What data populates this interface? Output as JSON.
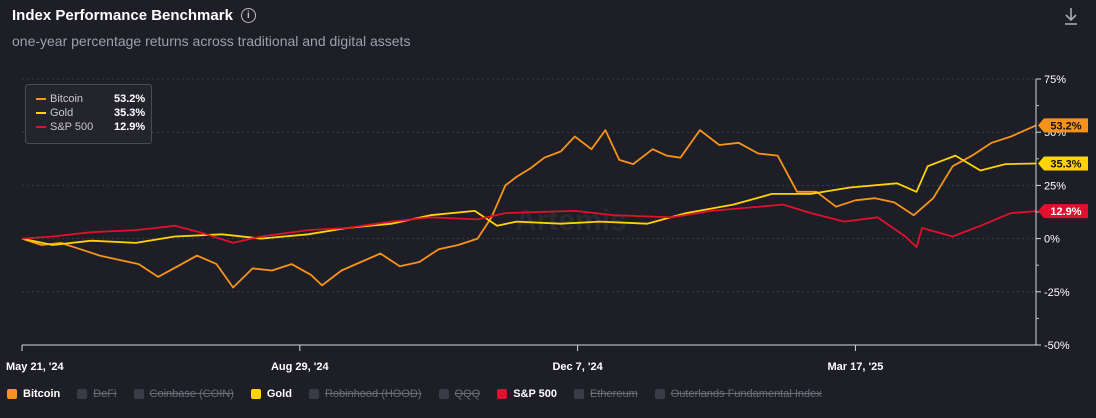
{
  "header": {
    "title": "Index Performance Benchmark",
    "info_glyph": "i",
    "subtitle": "one-year percentage returns across traditional and digital assets"
  },
  "watermark": "Artemis",
  "tooltip": [
    {
      "name": "Bitcoin",
      "value": "53.2%",
      "color": "#f7931a"
    },
    {
      "name": "Gold",
      "value": "35.3%",
      "color": "#ffd400"
    },
    {
      "name": "S&P 500",
      "value": "12.9%",
      "color": "#e0102f"
    }
  ],
  "legend": [
    {
      "label": "Bitcoin",
      "color": "#f7931a",
      "active": true
    },
    {
      "label": "DeFi",
      "color": "#3a3b44",
      "active": false
    },
    {
      "label": "Coinbase (COIN)",
      "color": "#3a3b44",
      "active": false
    },
    {
      "label": "Gold",
      "color": "#ffd400",
      "active": true
    },
    {
      "label": "Robinhood (HOOD)",
      "color": "#3a3b44",
      "active": false
    },
    {
      "label": "QQQ",
      "color": "#3a3b44",
      "active": false
    },
    {
      "label": "S&P 500",
      "color": "#e0102f",
      "active": true
    },
    {
      "label": "Ethereum",
      "color": "#3a3b44",
      "active": false
    },
    {
      "label": "Outerlands Fundamental Index",
      "color": "#3a3b44",
      "active": false
    }
  ],
  "chart_data": {
    "type": "line",
    "title": "Index Performance Benchmark",
    "subtitle": "one-year percentage returns across traditional and digital assets",
    "x_range": [
      "2024-05-21",
      "2025-05-21"
    ],
    "x_ticks": [
      {
        "label": "May 21, '24",
        "date": "2024-05-21"
      },
      {
        "label": "Aug 29, '24",
        "date": "2024-08-29"
      },
      {
        "label": "Dec 7, '24",
        "date": "2024-12-07"
      },
      {
        "label": "Mar 17, '25",
        "date": "2025-03-17"
      }
    ],
    "y_ticks": [
      {
        "label": "75%",
        "value": 75
      },
      {
        "label": "50%",
        "value": 50
      },
      {
        "label": "25%",
        "value": 25
      },
      {
        "label": "0%",
        "value": 0
      },
      {
        "label": "-25%",
        "value": -25
      },
      {
        "label": "-50%",
        "value": -50
      }
    ],
    "ylim": [
      -50,
      75
    ],
    "y_unit": "%",
    "grid": true,
    "series": [
      {
        "name": "Bitcoin",
        "color": "#f7931a",
        "last_label": "53.2%",
        "points": [
          [
            "2024-05-21",
            0
          ],
          [
            "2024-05-28",
            -3
          ],
          [
            "2024-06-04",
            -2
          ],
          [
            "2024-06-11",
            -5
          ],
          [
            "2024-06-18",
            -8
          ],
          [
            "2024-06-25",
            -10
          ],
          [
            "2024-07-02",
            -12
          ],
          [
            "2024-07-09",
            -18
          ],
          [
            "2024-07-16",
            -13
          ],
          [
            "2024-07-23",
            -8
          ],
          [
            "2024-07-30",
            -12
          ],
          [
            "2024-08-05",
            -23
          ],
          [
            "2024-08-12",
            -14
          ],
          [
            "2024-08-19",
            -15
          ],
          [
            "2024-08-26",
            -12
          ],
          [
            "2024-09-02",
            -17
          ],
          [
            "2024-09-06",
            -22
          ],
          [
            "2024-09-13",
            -15
          ],
          [
            "2024-09-20",
            -11
          ],
          [
            "2024-09-27",
            -7
          ],
          [
            "2024-10-04",
            -13
          ],
          [
            "2024-10-11",
            -11
          ],
          [
            "2024-10-18",
            -5
          ],
          [
            "2024-10-25",
            -3
          ],
          [
            "2024-11-01",
            0
          ],
          [
            "2024-11-06",
            10
          ],
          [
            "2024-11-11",
            25
          ],
          [
            "2024-11-15",
            29
          ],
          [
            "2024-11-20",
            33
          ],
          [
            "2024-11-25",
            38
          ],
          [
            "2024-12-01",
            41
          ],
          [
            "2024-12-06",
            48
          ],
          [
            "2024-12-12",
            42
          ],
          [
            "2024-12-17",
            51
          ],
          [
            "2024-12-22",
            37
          ],
          [
            "2024-12-27",
            35
          ],
          [
            "2025-01-03",
            42
          ],
          [
            "2025-01-08",
            39
          ],
          [
            "2025-01-13",
            38
          ],
          [
            "2025-01-20",
            51
          ],
          [
            "2025-01-27",
            44
          ],
          [
            "2025-02-03",
            45
          ],
          [
            "2025-02-10",
            40
          ],
          [
            "2025-02-17",
            39
          ],
          [
            "2025-02-24",
            22
          ],
          [
            "2025-03-03",
            22
          ],
          [
            "2025-03-10",
            15
          ],
          [
            "2025-03-17",
            18
          ],
          [
            "2025-03-24",
            19
          ],
          [
            "2025-03-31",
            17
          ],
          [
            "2025-04-07",
            11
          ],
          [
            "2025-04-14",
            19
          ],
          [
            "2025-04-21",
            34
          ],
          [
            "2025-04-28",
            39
          ],
          [
            "2025-05-05",
            45
          ],
          [
            "2025-05-12",
            48
          ],
          [
            "2025-05-21",
            53.2
          ]
        ]
      },
      {
        "name": "Gold",
        "color": "#ffd400",
        "last_label": "35.3%",
        "points": [
          [
            "2024-05-21",
            0
          ],
          [
            "2024-06-01",
            -3
          ],
          [
            "2024-06-15",
            -1
          ],
          [
            "2024-07-01",
            -2
          ],
          [
            "2024-07-15",
            1
          ],
          [
            "2024-08-01",
            2
          ],
          [
            "2024-08-15",
            0
          ],
          [
            "2024-09-01",
            2
          ],
          [
            "2024-09-15",
            5
          ],
          [
            "2024-10-01",
            7
          ],
          [
            "2024-10-15",
            11
          ],
          [
            "2024-10-31",
            13
          ],
          [
            "2024-11-08",
            6
          ],
          [
            "2024-11-15",
            8
          ],
          [
            "2024-12-01",
            7
          ],
          [
            "2024-12-15",
            8
          ],
          [
            "2025-01-01",
            7
          ],
          [
            "2025-01-15",
            12
          ],
          [
            "2025-02-01",
            16
          ],
          [
            "2025-02-15",
            21
          ],
          [
            "2025-03-01",
            21
          ],
          [
            "2025-03-15",
            24
          ],
          [
            "2025-04-01",
            26
          ],
          [
            "2025-04-08",
            22
          ],
          [
            "2025-04-12",
            34
          ],
          [
            "2025-04-22",
            39
          ],
          [
            "2025-05-01",
            32
          ],
          [
            "2025-05-10",
            35
          ],
          [
            "2025-05-21",
            35.3
          ]
        ]
      },
      {
        "name": "S&P 500",
        "color": "#e0102f",
        "last_label": "12.9%",
        "points": [
          [
            "2024-05-21",
            0
          ],
          [
            "2024-06-01",
            1
          ],
          [
            "2024-06-15",
            3
          ],
          [
            "2024-07-01",
            4
          ],
          [
            "2024-07-15",
            6
          ],
          [
            "2024-07-24",
            3
          ],
          [
            "2024-08-05",
            -2
          ],
          [
            "2024-08-15",
            1
          ],
          [
            "2024-09-01",
            4
          ],
          [
            "2024-09-15",
            5
          ],
          [
            "2024-10-01",
            8
          ],
          [
            "2024-10-15",
            10
          ],
          [
            "2024-11-01",
            9
          ],
          [
            "2024-11-11",
            12
          ],
          [
            "2024-12-06",
            13
          ],
          [
            "2024-12-20",
            11
          ],
          [
            "2025-01-10",
            10
          ],
          [
            "2025-01-24",
            13
          ],
          [
            "2025-02-19",
            16
          ],
          [
            "2025-03-01",
            12
          ],
          [
            "2025-03-13",
            8
          ],
          [
            "2025-03-25",
            10
          ],
          [
            "2025-04-04",
            1
          ],
          [
            "2025-04-08",
            -4
          ],
          [
            "2025-04-10",
            5
          ],
          [
            "2025-04-21",
            1
          ],
          [
            "2025-05-01",
            6
          ],
          [
            "2025-05-12",
            12
          ],
          [
            "2025-05-21",
            12.9
          ]
        ]
      }
    ]
  }
}
